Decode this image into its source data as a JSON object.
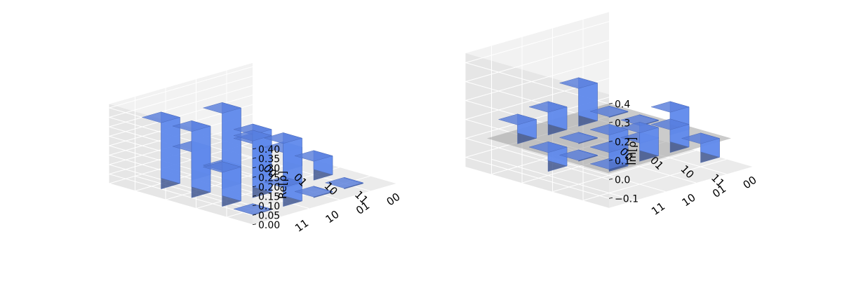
{
  "figure": {
    "bar_color": "#648fff",
    "panel_colors": {
      "left": "#f2f2f2",
      "right": "#e6e6e6",
      "floor": "#ebebeb",
      "grid": "#ffffff"
    },
    "zero_plane_color": "#a0a0a0"
  },
  "chart_data": [
    {
      "type": "bar3d",
      "quantity": "real",
      "zlabel": "Re[ρ]",
      "rows": [
        "00",
        "01",
        "10",
        "11"
      ],
      "cols": [
        "00",
        "01",
        "10",
        "11"
      ],
      "z_ticks": [
        "0.00",
        "0.05",
        "0.10",
        "0.15",
        "0.20",
        "0.25",
        "0.30",
        "0.35",
        "0.40"
      ],
      "zlim": [
        0,
        0.42
      ],
      "grid": true,
      "matrix": [
        [
          0.1,
          0.0,
          0.15,
          0.35
        ],
        [
          0.1,
          0.24,
          0.4,
          0.35
        ],
        [
          0.1,
          0.24,
          0.3,
          0.18
        ],
        [
          0.0,
          0.0,
          0.1,
          0.0
        ]
      ]
    },
    {
      "type": "bar3d",
      "quantity": "imaginary",
      "zlabel": "Im[ρ]",
      "rows": [
        "00",
        "01",
        "10",
        "11"
      ],
      "cols": [
        "00",
        "01",
        "10",
        "11"
      ],
      "z_ticks": [
        "−0.1",
        "0.0",
        "0.1",
        "0.2",
        "0.3",
        "0.4"
      ],
      "zlim": [
        -0.15,
        0.45
      ],
      "grid": true,
      "matrix": [
        [
          0.0,
          0.2,
          0.12,
          0.1
        ],
        [
          0.0,
          -0.12,
          0.0,
          -0.1
        ],
        [
          0.12,
          0.0,
          -0.1,
          0.0
        ],
        [
          -0.1,
          0.12,
          0.15,
          0.0
        ]
      ]
    }
  ]
}
